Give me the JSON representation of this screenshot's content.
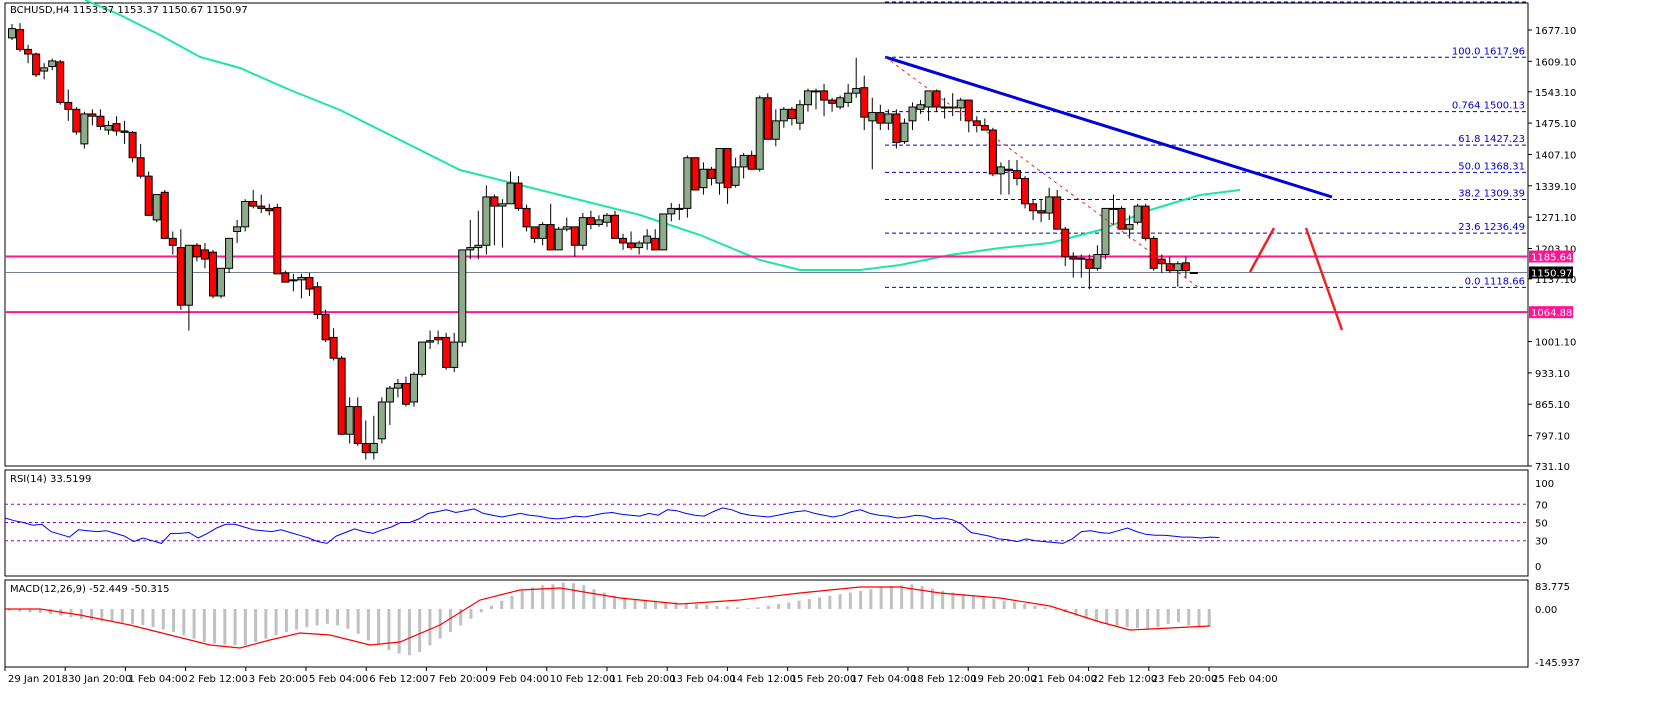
{
  "header": {
    "symbol_label": "BCHUSD,H4  1153.37 1153.37 1150.67 1150.97"
  },
  "rsi_panel": {
    "label": "RSI(14) 33.5199"
  },
  "macd_panel": {
    "label": "MACD(12,26,9) -52.449 -50.315"
  },
  "colors": {
    "bull": "#8fac8a",
    "bear": "#ff0000",
    "ma": "#1de6a0",
    "trend": "#0000dd",
    "fib": "#0000cc",
    "sr": "#ff1493",
    "last": "#708090",
    "rsi": "#0000ff",
    "rsi_level": "#9400d3",
    "macd_hist": "#c0c0c0",
    "macd_signal": "#ff0000",
    "arrow": "#ee2222"
  },
  "price_axis": {
    "ticks": [
      "1677.10",
      "1609.10",
      "1543.10",
      "1475.10",
      "1407.10",
      "1339.10",
      "1271.10",
      "1203.10",
      "1137.10",
      "1001.10",
      "933.10",
      "865.10",
      "797.10",
      "731.10"
    ]
  },
  "price_tags": {
    "resistance": "1185.64",
    "last": "1150.97",
    "support": "1064.88"
  },
  "fib_levels": [
    {
      "label": "100.0  1617.96",
      "price": 1617.96
    },
    {
      "label": "0.764  1500.13",
      "price": 1500.13
    },
    {
      "label": "61.8  1427.23",
      "price": 1427.23
    },
    {
      "label": "50.0 1368.31",
      "price": 1368.31
    },
    {
      "label": "38.2  1309.39",
      "price": 1309.39
    },
    {
      "label": "23.6  1236.49",
      "price": 1236.49
    },
    {
      "label": "0.0  1118.66",
      "price": 1118.66
    }
  ],
  "rsi_axis": {
    "ticks": [
      "100",
      "70",
      "50",
      "30",
      "0"
    ]
  },
  "macd_axis": {
    "ticks": [
      "83.775",
      "0.00",
      "-145.937"
    ]
  },
  "time_axis": {
    "labels": [
      "29 Jan 2018",
      "30 Jan 20:00",
      "1 Feb 04:00",
      "2 Feb 12:00",
      "3 Feb 20:00",
      "5 Feb 04:00",
      "6 Feb 12:00",
      "7 Feb 20:00",
      "9 Feb 04:00",
      "10 Feb 12:00",
      "11 Feb 20:00",
      "13 Feb 04:00",
      "14 Feb 12:00",
      "15 Feb 20:00",
      "17 Feb 04:00",
      "18 Feb 12:00",
      "19 Feb 20:00",
      "21 Feb 04:00",
      "22 Feb 12:00",
      "23 Feb 20:00",
      "25 Feb 04:00"
    ]
  },
  "chart_data": {
    "type": "candlestick",
    "title": "BCHUSD,H4",
    "ohlc_header": {
      "open": 1153.37,
      "high": 1153.37,
      "low": 1150.67,
      "close": 1150.97
    },
    "x_labels": [
      "29 Jan 2018",
      "30 Jan 20:00",
      "1 Feb 04:00",
      "2 Feb 12:00",
      "3 Feb 20:00",
      "5 Feb 04:00",
      "6 Feb 12:00",
      "7 Feb 20:00",
      "9 Feb 04:00",
      "10 Feb 12:00",
      "11 Feb 20:00",
      "13 Feb 04:00",
      "14 Feb 12:00",
      "15 Feb 20:00",
      "17 Feb 04:00",
      "18 Feb 12:00",
      "19 Feb 20:00",
      "21 Feb 04:00",
      "22 Feb 12:00",
      "23 Feb 20:00",
      "25 Feb 04:00"
    ],
    "ylim": [
      731.1,
      1745
    ],
    "candles": [
      [
        1660,
        1690,
        1655,
        1680
      ],
      [
        1678,
        1692,
        1630,
        1635
      ],
      [
        1635,
        1645,
        1605,
        1625
      ],
      [
        1625,
        1628,
        1575,
        1580
      ],
      [
        1588,
        1605,
        1570,
        1595
      ],
      [
        1598,
        1615,
        1590,
        1610
      ],
      [
        1608,
        1612,
        1515,
        1520
      ],
      [
        1520,
        1548,
        1480,
        1505
      ],
      [
        1505,
        1510,
        1450,
        1456
      ],
      [
        1430,
        1500,
        1420,
        1495
      ],
      [
        1495,
        1505,
        1470,
        1490
      ],
      [
        1490,
        1505,
        1460,
        1468
      ],
      [
        1460,
        1480,
        1450,
        1470
      ],
      [
        1474,
        1490,
        1448,
        1458
      ],
      [
        1458,
        1480,
        1430,
        1455
      ],
      [
        1455,
        1458,
        1390,
        1400
      ],
      [
        1400,
        1430,
        1355,
        1360
      ],
      [
        1360,
        1370,
        1275,
        1275
      ],
      [
        1265,
        1320,
        1260,
        1320
      ],
      [
        1325,
        1330,
        1225,
        1225
      ],
      [
        1225,
        1240,
        1190,
        1210
      ],
      [
        1205,
        1245,
        1070,
        1080
      ],
      [
        1080,
        1205,
        1025,
        1210
      ],
      [
        1210,
        1215,
        1175,
        1185
      ],
      [
        1200,
        1215,
        1160,
        1180
      ],
      [
        1195,
        1200,
        1095,
        1100
      ],
      [
        1100,
        1160,
        1095,
        1160
      ],
      [
        1160,
        1225,
        1150,
        1225
      ],
      [
        1240,
        1265,
        1215,
        1250
      ],
      [
        1250,
        1310,
        1240,
        1305
      ],
      [
        1305,
        1330,
        1290,
        1295
      ],
      [
        1295,
        1320,
        1280,
        1290
      ],
      [
        1290,
        1300,
        1275,
        1285
      ],
      [
        1292,
        1300,
        1150,
        1148
      ],
      [
        1150,
        1155,
        1130,
        1130
      ],
      [
        1135,
        1148,
        1110,
        1135
      ],
      [
        1135,
        1148,
        1095,
        1140
      ],
      [
        1140,
        1150,
        1100,
        1115
      ],
      [
        1120,
        1130,
        1050,
        1060
      ],
      [
        1060,
        1070,
        1000,
        1005
      ],
      [
        1010,
        1030,
        960,
        965
      ],
      [
        965,
        970,
        800,
        800
      ],
      [
        800,
        880,
        780,
        860
      ],
      [
        860,
        880,
        775,
        780
      ],
      [
        780,
        830,
        745,
        760
      ],
      [
        760,
        840,
        745,
        780
      ],
      [
        790,
        880,
        780,
        870
      ],
      [
        870,
        905,
        820,
        900
      ],
      [
        900,
        920,
        880,
        910
      ],
      [
        910,
        925,
        860,
        865
      ],
      [
        870,
        935,
        860,
        930
      ],
      [
        930,
        1000,
        925,
        1000
      ],
      [
        1000,
        1025,
        985,
        1003
      ],
      [
        1010,
        1025,
        995,
        1005
      ],
      [
        1010,
        1020,
        940,
        945
      ],
      [
        945,
        1020,
        935,
        1000
      ],
      [
        1000,
        1200,
        990,
        1200
      ],
      [
        1200,
        1265,
        1180,
        1205
      ],
      [
        1205,
        1285,
        1180,
        1210
      ],
      [
        1210,
        1340,
        1190,
        1315
      ],
      [
        1315,
        1320,
        1210,
        1295
      ],
      [
        1295,
        1310,
        1205,
        1300
      ],
      [
        1300,
        1370,
        1305,
        1345
      ],
      [
        1345,
        1360,
        1285,
        1290
      ],
      [
        1290,
        1298,
        1240,
        1250
      ],
      [
        1250,
        1250,
        1215,
        1225
      ],
      [
        1225,
        1260,
        1210,
        1255
      ],
      [
        1255,
        1300,
        1200,
        1200
      ],
      [
        1200,
        1250,
        1200,
        1245
      ],
      [
        1245,
        1270,
        1240,
        1250
      ],
      [
        1250,
        1250,
        1185,
        1210
      ],
      [
        1210,
        1280,
        1200,
        1270
      ],
      [
        1270,
        1285,
        1245,
        1255
      ],
      [
        1255,
        1275,
        1250,
        1265
      ],
      [
        1260,
        1280,
        1250,
        1275
      ],
      [
        1275,
        1285,
        1225,
        1225
      ],
      [
        1225,
        1235,
        1200,
        1215
      ],
      [
        1215,
        1240,
        1200,
        1205
      ],
      [
        1205,
        1220,
        1190,
        1215
      ],
      [
        1215,
        1245,
        1200,
        1230
      ],
      [
        1225,
        1245,
        1200,
        1200
      ],
      [
        1200,
        1260,
        1200,
        1278
      ],
      [
        1278,
        1302,
        1262,
        1290
      ],
      [
        1290,
        1300,
        1265,
        1290
      ],
      [
        1290,
        1405,
        1270,
        1400
      ],
      [
        1400,
        1400,
        1330,
        1330
      ],
      [
        1335,
        1390,
        1320,
        1375
      ],
      [
        1375,
        1380,
        1340,
        1355
      ],
      [
        1345,
        1420,
        1320,
        1420
      ],
      [
        1420,
        1420,
        1300,
        1335
      ],
      [
        1340,
        1400,
        1335,
        1380
      ],
      [
        1380,
        1410,
        1355,
        1405
      ],
      [
        1405,
        1415,
        1380,
        1375
      ],
      [
        1375,
        1535,
        1370,
        1530
      ],
      [
        1530,
        1540,
        1440,
        1440
      ],
      [
        1440,
        1505,
        1425,
        1480
      ],
      [
        1480,
        1510,
        1465,
        1505
      ],
      [
        1505,
        1510,
        1470,
        1485
      ],
      [
        1475,
        1525,
        1460,
        1515
      ],
      [
        1515,
        1550,
        1500,
        1545
      ],
      [
        1545,
        1550,
        1505,
        1545
      ],
      [
        1545,
        1560,
        1490,
        1525
      ],
      [
        1525,
        1530,
        1500,
        1518
      ],
      [
        1510,
        1535,
        1505,
        1530
      ],
      [
        1520,
        1560,
        1510,
        1540
      ],
      [
        1540,
        1617,
        1530,
        1550
      ],
      [
        1552,
        1578,
        1460,
        1488
      ],
      [
        1480,
        1530,
        1375,
        1498
      ],
      [
        1498,
        1515,
        1460,
        1475
      ],
      [
        1475,
        1505,
        1460,
        1495
      ],
      [
        1495,
        1505,
        1420,
        1433
      ],
      [
        1435,
        1485,
        1430,
        1475
      ],
      [
        1480,
        1520,
        1460,
        1510
      ],
      [
        1505,
        1525,
        1495,
        1515
      ],
      [
        1510,
        1545,
        1480,
        1545
      ],
      [
        1545,
        1548,
        1500,
        1510
      ],
      [
        1510,
        1530,
        1485,
        1508
      ],
      [
        1508,
        1540,
        1490,
        1510
      ],
      [
        1508,
        1530,
        1480,
        1525
      ],
      [
        1525,
        1525,
        1455,
        1480
      ],
      [
        1480,
        1490,
        1455,
        1470
      ],
      [
        1470,
        1485,
        1460,
        1460
      ],
      [
        1460,
        1465,
        1360,
        1365
      ],
      [
        1365,
        1390,
        1320,
        1380
      ],
      [
        1375,
        1395,
        1320,
        1372
      ],
      [
        1372,
        1395,
        1340,
        1355
      ],
      [
        1355,
        1360,
        1290,
        1300
      ],
      [
        1300,
        1310,
        1265,
        1285
      ],
      [
        1285,
        1310,
        1260,
        1280
      ],
      [
        1280,
        1335,
        1265,
        1315
      ],
      [
        1315,
        1330,
        1255,
        1245
      ],
      [
        1245,
        1250,
        1165,
        1185
      ],
      [
        1185,
        1195,
        1140,
        1180
      ],
      [
        1180,
        1190,
        1140,
        1182
      ],
      [
        1180,
        1190,
        1115,
        1160
      ],
      [
        1160,
        1210,
        1155,
        1190
      ],
      [
        1190,
        1290,
        1180,
        1290
      ],
      [
        1290,
        1320,
        1255,
        1290
      ],
      [
        1290,
        1295,
        1245,
        1245
      ],
      [
        1245,
        1275,
        1225,
        1255
      ],
      [
        1260,
        1300,
        1255,
        1295
      ],
      [
        1295,
        1300,
        1220,
        1225
      ],
      [
        1225,
        1230,
        1155,
        1160
      ],
      [
        1180,
        1190,
        1150,
        1170
      ],
      [
        1170,
        1185,
        1150,
        1155
      ],
      [
        1155,
        1175,
        1120,
        1170
      ],
      [
        1172,
        1185,
        1140,
        1155
      ],
      [
        1151,
        1151,
        1150,
        1151
      ]
    ],
    "ma_line": {
      "label": "Moving average (green)"
    },
    "fib_retracement": {
      "high": 1617.96,
      "low": 1118.66,
      "levels": [
        100.0,
        76.4,
        61.8,
        50.0,
        38.2,
        23.6,
        0.0
      ]
    },
    "horizontal_levels": {
      "resistance": 1185.64,
      "support": 1064.88,
      "last_price": 1150.97
    },
    "rsi": {
      "name": "RSI(14)",
      "value": 33.5199,
      "levels": [
        70,
        50,
        30
      ],
      "ylim": [
        0,
        100
      ]
    },
    "macd": {
      "name": "MACD(12,26,9)",
      "main": -52.449,
      "signal": -50.315,
      "ylim": [
        -145.937,
        83.775
      ]
    }
  }
}
